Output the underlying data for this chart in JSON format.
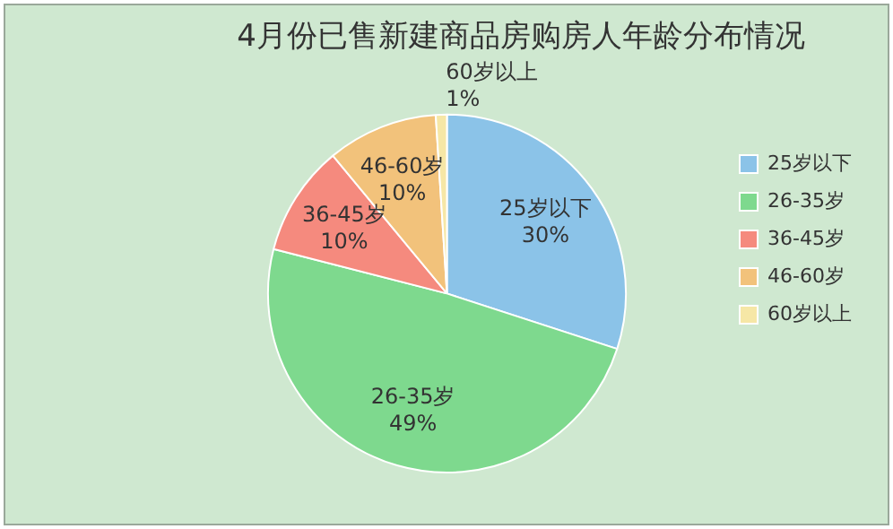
{
  "chart_data": {
    "type": "pie",
    "title": "4月份已售新建商品房购房人年龄分布情况",
    "categories": [
      "25岁以下",
      "26-35岁",
      "36-45岁",
      "46-60岁",
      "60岁以上"
    ],
    "values": [
      30,
      49,
      10,
      10,
      1
    ],
    "colors": [
      "#8bc3e8",
      "#7ed98e",
      "#f58a7e",
      "#f2c27b",
      "#f6e7a6"
    ],
    "value_labels": [
      "30%",
      "49%",
      "10%",
      "10%",
      "1%"
    ],
    "legend": "right"
  }
}
